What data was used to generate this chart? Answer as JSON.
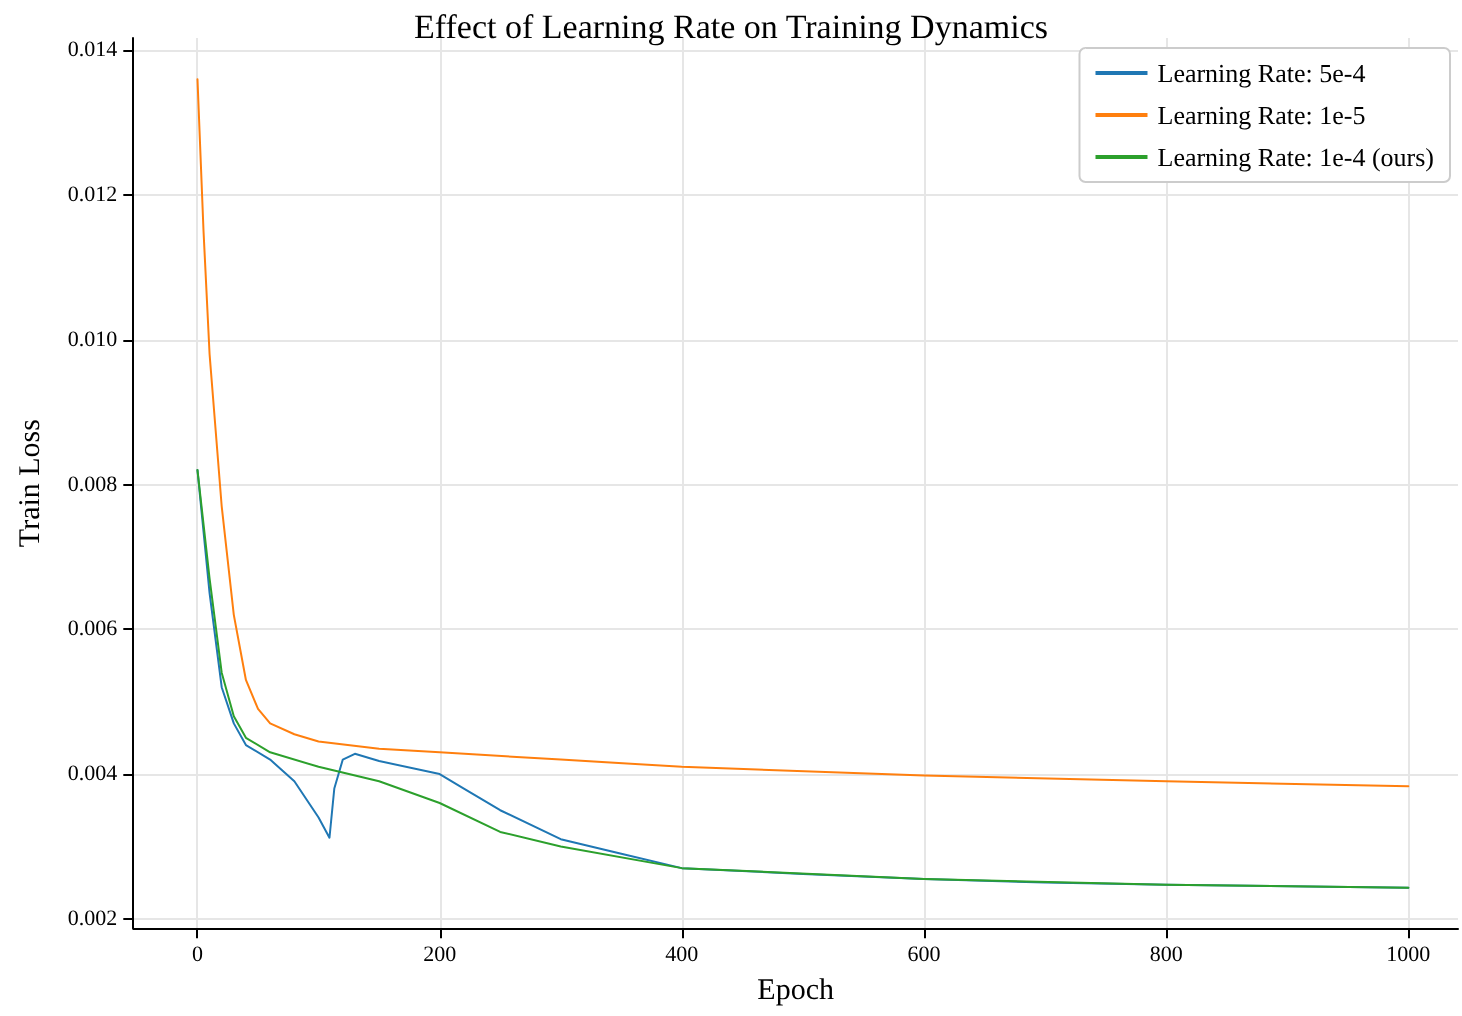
{
  "chart_data": {
    "type": "line",
    "title": "Effect of Learning Rate on Training Dynamics",
    "xlabel": "Epoch",
    "ylabel": "Train Loss",
    "xlim": [
      -53,
      1041
    ],
    "xticks": [
      0,
      200,
      400,
      600,
      800,
      1000
    ],
    "ylim": [
      0.00187,
      0.01417
    ],
    "yticks": [
      {
        "value": 0.002,
        "label": "0.002"
      },
      {
        "value": 0.004,
        "label": "0.004"
      },
      {
        "value": 0.006,
        "label": "0.006"
      },
      {
        "value": 0.008,
        "label": "0.008"
      },
      {
        "value": 0.01,
        "label": "0.010"
      },
      {
        "value": 0.012,
        "label": "0.012"
      },
      {
        "value": 0.014,
        "label": "0.014"
      }
    ],
    "grid": true,
    "legend": "top right",
    "marker": "none",
    "line_style": "solid",
    "series": [
      {
        "name": "Learning Rate: 5e-4",
        "color": "#1f77b4",
        "x": [
          0,
          10,
          20,
          30,
          40,
          60,
          80,
          100,
          109,
          113,
          120,
          130,
          150,
          200,
          220,
          250,
          300,
          350,
          400,
          500,
          600,
          700,
          800,
          1000
        ],
        "values": [
          0.0082,
          0.0065,
          0.0052,
          0.0047,
          0.0044,
          0.0042,
          0.0039,
          0.0034,
          0.00312,
          0.0038,
          0.0042,
          0.00428,
          0.00418,
          0.004,
          0.0038,
          0.0035,
          0.0031,
          0.0029,
          0.0027,
          0.00262,
          0.00255,
          0.0025,
          0.00247,
          0.00243
        ]
      },
      {
        "name": "Learning Rate: 1e-5",
        "color": "#ff7f0e",
        "x": [
          0,
          5,
          10,
          20,
          30,
          40,
          50,
          60,
          80,
          100,
          150,
          200,
          300,
          400,
          600,
          800,
          1000
        ],
        "values": [
          0.0136,
          0.0115,
          0.0098,
          0.0077,
          0.0062,
          0.0053,
          0.0049,
          0.0047,
          0.00455,
          0.00445,
          0.00435,
          0.0043,
          0.0042,
          0.0041,
          0.00398,
          0.0039,
          0.00383
        ]
      },
      {
        "name": "Learning Rate: 1e-4 (ours)",
        "color": "#2ca02c",
        "x": [
          0,
          10,
          20,
          30,
          40,
          60,
          100,
          150,
          200,
          250,
          300,
          400,
          600,
          800,
          1000
        ],
        "values": [
          0.0082,
          0.0067,
          0.0054,
          0.0048,
          0.0045,
          0.0043,
          0.0041,
          0.0039,
          0.0036,
          0.0032,
          0.003,
          0.0027,
          0.00255,
          0.00247,
          0.00243
        ]
      }
    ]
  }
}
